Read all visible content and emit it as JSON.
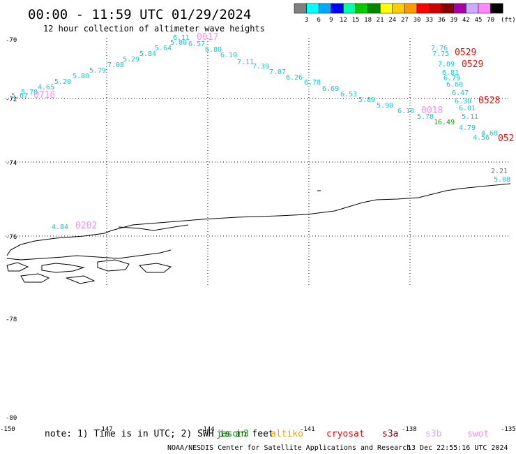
{
  "title": "00:00 - 11:59 UTC 01/29/2024",
  "subtitle": "12 hour collection of altimeter wave heights",
  "legend": {
    "colors": [
      "#808080",
      "#00ffff",
      "#00aaff",
      "#0000ff",
      "#00ffaa",
      "#00cc00",
      "#008800",
      "#ffff00",
      "#ffcc00",
      "#ff9900",
      "#ff0000",
      "#cc0000",
      "#880000",
      "#aa00aa",
      "#ccaaff",
      "#ff88ff",
      "#000000"
    ],
    "labels": [
      "3",
      "6",
      "9",
      "12",
      "15",
      "18",
      "21",
      "24",
      "27",
      "30",
      "33",
      "36",
      "39",
      "42",
      "45",
      "70"
    ],
    "unit": "(ft)"
  },
  "axes": {
    "lat_labels": [
      "-70",
      "-72",
      "-74",
      "-76",
      "-78",
      "-78",
      "-80"
    ],
    "lon_labels": [
      "-150",
      "-147",
      "-144",
      "-141",
      "-138",
      "-135"
    ]
  },
  "track_cyan": [
    {
      "label": "5.67"
    },
    {
      "label": "5.70"
    },
    {
      "label": "4.65"
    },
    {
      "label": "5.20"
    },
    {
      "label": "5.80"
    },
    {
      "label": "5.79"
    },
    {
      "label": "7.08"
    },
    {
      "label": "5.29"
    },
    {
      "label": "5.84"
    },
    {
      "label": "5.64"
    },
    {
      "label": "5.80"
    },
    {
      "label": "6.11"
    },
    {
      "label": "6.57"
    },
    {
      "label": "6.80"
    },
    {
      "label": "6.19"
    },
    {
      "label": "7.11"
    },
    {
      "label": "7.39"
    },
    {
      "label": "7.07"
    },
    {
      "label": "6.26"
    },
    {
      "label": "6.78"
    },
    {
      "label": "6.69"
    },
    {
      "label": "6.53"
    },
    {
      "label": "5.89"
    },
    {
      "label": "5.90"
    },
    {
      "label": "6.10"
    },
    {
      "label": "5.78"
    },
    {
      "label": "7.76"
    },
    {
      "label": "7.75"
    },
    {
      "label": "7.09"
    },
    {
      "label": "6.81"
    },
    {
      "label": "6.79"
    },
    {
      "label": "6.60"
    },
    {
      "label": "6.47"
    },
    {
      "label": "6.30"
    },
    {
      "label": "6.01"
    },
    {
      "label": "5.11"
    },
    {
      "label": "4.79"
    },
    {
      "label": "4.68"
    },
    {
      "label": "4.56"
    },
    {
      "label": "4.84"
    },
    {
      "label": "5.08"
    }
  ],
  "track_green": [
    {
      "label": "16.49"
    }
  ],
  "track_gray": [
    {
      "label": "2.21"
    }
  ],
  "time_labels_pink": [
    {
      "label": "0017"
    },
    {
      "label": "0716"
    },
    {
      "label": "0018"
    },
    {
      "label": "0202"
    }
  ],
  "time_labels_red": [
    {
      "label": "0529"
    },
    {
      "label": "0529"
    },
    {
      "label": "0528"
    },
    {
      "label": "052"
    }
  ],
  "footer": {
    "note": "note: 1) Time is in UTC; 2) SWH is in feet",
    "satellites": [
      {
        "name": "jason3",
        "color": "#00aa00"
      },
      {
        "name": "altiko",
        "color": "#ff9900"
      },
      {
        "name": "cryosat",
        "color": "#ff0000"
      },
      {
        "name": "s3a",
        "color": "#880000"
      },
      {
        "name": "s3b",
        "color": "#ccaaff"
      },
      {
        "name": "swot",
        "color": "#ff88ff"
      }
    ],
    "credit": "NOAA/NESDIS Center for Satellite Applications and Research",
    "timestamp": "13 Dec 22:55:16 UTC 2024"
  }
}
